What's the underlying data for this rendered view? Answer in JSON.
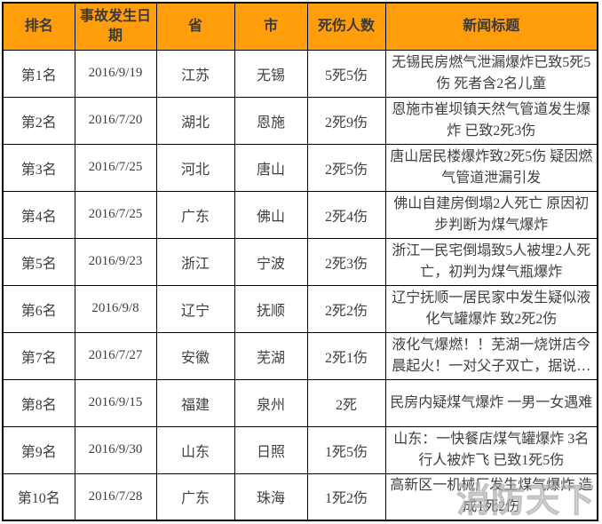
{
  "watermark": "消防天下",
  "colors": {
    "header_bg": "#ff9e0a",
    "border": "#000000",
    "header_text": "#3a3a3a",
    "body_text": "#3f3f3f"
  },
  "table": {
    "headers": [
      "排名",
      "事故发生日期",
      "省",
      "市",
      "死伤人数",
      "新闻标题"
    ],
    "rows": [
      {
        "rank": "第1名",
        "date": "2016/9/19",
        "province": "江苏",
        "city": "无锡",
        "casualties": "5死5伤",
        "title": "无锡民房燃气泄漏爆炸已致5死5伤 死者含2名儿童"
      },
      {
        "rank": "第2名",
        "date": "2016/7/20",
        "province": "湖北",
        "city": "恩施",
        "casualties": "2死9伤",
        "title": "恩施市崔坝镇天然气管道发生爆炸 已致2死3伤"
      },
      {
        "rank": "第3名",
        "date": "2016/7/25",
        "province": "河北",
        "city": "唐山",
        "casualties": "2死5伤",
        "title": "唐山居民楼爆炸致2死5伤 疑因燃气管道泄漏引发"
      },
      {
        "rank": "第4名",
        "date": "2016/7/25",
        "province": "广东",
        "city": "佛山",
        "casualties": "2死4伤",
        "title": "佛山自建房倒塌2人死亡 原因初步判断为煤气爆炸"
      },
      {
        "rank": "第5名",
        "date": "2016/9/23",
        "province": "浙江",
        "city": "宁波",
        "casualties": "2死3伤",
        "title": "浙江一民宅倒塌致5人被埋2人死亡，初判为煤气瓶爆炸"
      },
      {
        "rank": "第6名",
        "date": "2016/9/8",
        "province": "辽宁",
        "city": "抚顺",
        "casualties": "2死2伤",
        "title": "辽宁抚顺一居民家中发生疑似液化气罐爆炸 致2死2伤"
      },
      {
        "rank": "第7名",
        "date": "2016/7/27",
        "province": "安徽",
        "city": "芜湖",
        "casualties": "2死1伤",
        "title": "液化气爆燃！！芜湖一烧饼店今晨起火！一对父子双亡，据说…"
      },
      {
        "rank": "第8名",
        "date": "2016/9/15",
        "province": "福建",
        "city": "泉州",
        "casualties": "2死",
        "title": "民房内疑煤气爆炸 一男一女遇难"
      },
      {
        "rank": "第9名",
        "date": "2016/9/30",
        "province": "山东",
        "city": "日照",
        "casualties": "1死5伤",
        "title": "山东：一快餐店煤气罐爆炸 3名行人被炸飞 已致1死5伤"
      },
      {
        "rank": "第10名",
        "date": "2016/7/28",
        "province": "广东",
        "city": "珠海",
        "casualties": "1死2伤",
        "title": "高新区一机械厂发生煤气爆炸 造成1死2伤"
      }
    ]
  }
}
